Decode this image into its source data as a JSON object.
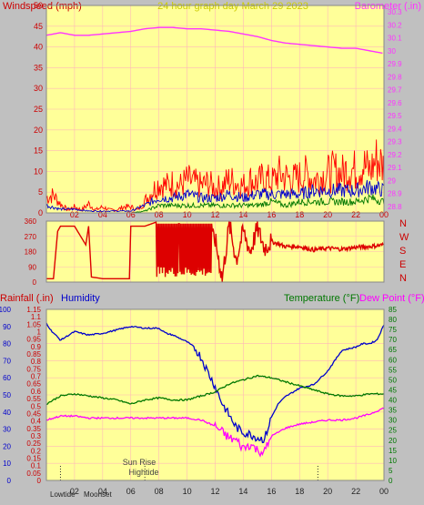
{
  "header": {
    "title": "24 hour graph day   March 29 2023",
    "left_label": "Windspeed (mph)",
    "right_label": "Barometer (.in)"
  },
  "colors": {
    "plot_bg": "#ffff99",
    "frame_bg": "#c0c0c0",
    "grid": "#ffb8b8",
    "wind_gust": "#ff0000",
    "wind_avg": "#0000cc",
    "wind_low": "#007700",
    "barometer": "#ff33ff",
    "direction": "#dd0000",
    "humidity": "#0000cc",
    "temperature": "#007700",
    "dewpoint": "#ff00ff",
    "title_text": "#cccc00",
    "axis_red": "#cc0000"
  },
  "chart_data": [
    {
      "type": "line",
      "id": "wind",
      "x_ticks": [
        "02",
        "04",
        "06",
        "08",
        "10",
        "12",
        "14",
        "16",
        "18",
        "20",
        "22",
        "00"
      ],
      "y_ticks_left": [
        "0",
        "5",
        "10",
        "15",
        "20",
        "25",
        "30",
        "35",
        "40",
        "45",
        "50"
      ],
      "ylim_left": [
        0,
        50
      ],
      "y_ticks_right": [
        "28.8",
        "28.9",
        "29",
        "29.1",
        "29.2",
        "29.3",
        "29.4",
        "29.5",
        "29.6",
        "29.7",
        "29.8",
        "29.9",
        "30",
        "30.1",
        "30.2",
        "30.3"
      ],
      "ylim_right": [
        28.75,
        30.35
      ],
      "xlim_hours": [
        0,
        24
      ],
      "series": [
        {
          "name": "Windspeed (mph)",
          "role": "gust",
          "x": [
            0,
            0.5,
            1,
            1.5,
            2,
            2.5,
            3,
            3.5,
            4,
            4.5,
            5,
            5.5,
            6,
            6.5,
            7,
            7.5,
            8,
            8.5,
            9,
            9.5,
            10,
            10.5,
            11,
            11.5,
            12,
            12.5,
            13,
            13.5,
            14,
            14.5,
            15,
            15.5,
            16,
            16.5,
            17,
            17.5,
            18,
            18.5,
            19,
            19.5,
            20,
            20.5,
            21,
            21.5,
            22,
            22.5,
            23,
            23.5,
            24
          ],
          "y": [
            5,
            6,
            3,
            1,
            2,
            1,
            3,
            1,
            2,
            1,
            1,
            2,
            2,
            1,
            4,
            7,
            10,
            9,
            10,
            9,
            11,
            10,
            9,
            10,
            8,
            9,
            11,
            10,
            9,
            11,
            10,
            12,
            10,
            13,
            12,
            11,
            12,
            13,
            11,
            12,
            13,
            14,
            13,
            15,
            14,
            16,
            14,
            18,
            15
          ]
        },
        {
          "name": "Average",
          "role": "avg",
          "x": [
            0,
            1,
            2,
            3,
            4,
            5,
            6,
            7,
            8,
            9,
            10,
            11,
            12,
            13,
            14,
            15,
            16,
            17,
            18,
            19,
            20,
            21,
            22,
            23,
            24
          ],
          "y": [
            2,
            1,
            1,
            0.5,
            0.5,
            0.5,
            0.5,
            2,
            4,
            4,
            5,
            4,
            4,
            5,
            4,
            5,
            5,
            5,
            5,
            6,
            6,
            6,
            6,
            7,
            6
          ]
        },
        {
          "name": "Low",
          "role": "low",
          "x": [
            0,
            1,
            2,
            3,
            4,
            5,
            6,
            7,
            8,
            9,
            10,
            11,
            12,
            13,
            14,
            15,
            16,
            17,
            18,
            19,
            20,
            21,
            22,
            23,
            24
          ],
          "y": [
            0,
            0,
            0,
            0,
            0,
            0,
            0,
            0.5,
            2,
            2,
            2,
            2,
            2,
            2,
            2,
            2,
            3,
            2,
            3,
            3,
            3,
            3,
            3,
            4,
            3
          ]
        },
        {
          "name": "Barometer (.in)",
          "role": "barometer",
          "axis": "right",
          "x": [
            0,
            1,
            2,
            3,
            4,
            5,
            6,
            7,
            8,
            9,
            10,
            11,
            12,
            13,
            14,
            15,
            16,
            17,
            18,
            19,
            20,
            21,
            22,
            23,
            24
          ],
          "y": [
            30.12,
            30.14,
            30.12,
            30.12,
            30.13,
            30.14,
            30.15,
            30.17,
            30.18,
            30.18,
            30.17,
            30.17,
            30.16,
            30.15,
            30.13,
            30.11,
            30.08,
            30.06,
            30.05,
            30.04,
            30.03,
            30.02,
            30.02,
            30.0,
            29.98
          ]
        }
      ]
    },
    {
      "type": "line",
      "id": "direction",
      "y_ticks": [
        "0",
        "90",
        "180",
        "270",
        "360"
      ],
      "ylim": [
        0,
        360
      ],
      "direction_labels": [
        "N",
        "W",
        "S",
        "E",
        "N"
      ],
      "xlim_hours": [
        0,
        24
      ],
      "series": [
        {
          "name": "Wind direction",
          "x": [
            0,
            0.5,
            0.8,
            1,
            2,
            2.8,
            3,
            3.2,
            4,
            5,
            5.9,
            6,
            6.5,
            7,
            8,
            9,
            10,
            11,
            12,
            12.5,
            13,
            13.5,
            14,
            14.5,
            15,
            15.5,
            16,
            17,
            18,
            19,
            20,
            21,
            22,
            23,
            24
          ],
          "y": [
            20,
            20,
            300,
            330,
            330,
            220,
            330,
            30,
            20,
            20,
            20,
            330,
            330,
            330,
            360,
            340,
            350,
            300,
            250,
            20,
            340,
            130,
            300,
            180,
            320,
            200,
            240,
            210,
            210,
            190,
            200,
            195,
            205,
            210,
            220
          ]
        }
      ]
    },
    {
      "type": "line",
      "id": "temp",
      "left_title": "Rainfall (.in)",
      "humidity_title": "Humidity",
      "right_title_temp": "Temperature (°F)",
      "right_title_dew": "Dew Point (°F)",
      "y_ticks_humidity": [
        "0",
        "10",
        "20",
        "30",
        "40",
        "50",
        "60",
        "70",
        "80",
        "90",
        "100"
      ],
      "y_ticks_rain": [
        "0",
        "0.05",
        "0.1",
        "0.15",
        "0.2",
        "0.25",
        "0.3",
        "0.35",
        "0.4",
        "0.45",
        "0.5",
        "0.55",
        "0.6",
        "0.65",
        "0.7",
        "0.75",
        "0.8",
        "0.85",
        "0.9",
        "0.95",
        "1",
        "1.05",
        "1.1",
        "1.15"
      ],
      "y_ticks_temp": [
        "0",
        "5",
        "10",
        "15",
        "20",
        "25",
        "30",
        "35",
        "40",
        "45",
        "50",
        "55",
        "60",
        "65",
        "70",
        "75",
        "80",
        "85"
      ],
      "ylim_humidity": [
        0,
        100
      ],
      "ylim_temp": [
        0,
        85
      ],
      "xlim_hours": [
        0,
        24
      ],
      "x_ticks": [
        "02",
        "04",
        "06",
        "08",
        "10",
        "12",
        "14",
        "16",
        "18",
        "20",
        "22",
        "00"
      ],
      "annotations": [
        "Sun Rise",
        "Hightide",
        "Lowtide",
        "Moonset"
      ],
      "series": [
        {
          "name": "Humidity",
          "x": [
            0,
            0.3,
            1,
            2,
            3,
            4,
            5,
            6,
            7,
            8,
            8.5,
            9,
            10,
            10.5,
            11,
            11.5,
            12,
            12.5,
            13,
            13.5,
            14,
            14.5,
            15,
            15.5,
            16,
            16.5,
            17,
            18,
            19,
            20,
            21,
            22,
            22.5,
            23,
            23.5,
            24
          ],
          "y": [
            92,
            88,
            82,
            87,
            85,
            86,
            88,
            90,
            89,
            89,
            86,
            85,
            81,
            78,
            72,
            63,
            55,
            45,
            38,
            31,
            28,
            27,
            25,
            24,
            37,
            45,
            49,
            54,
            56,
            64,
            76,
            78,
            80,
            80,
            82,
            91
          ]
        },
        {
          "name": "Temperature (°F)",
          "x": [
            0,
            1,
            2,
            3,
            4,
            5,
            6,
            7,
            8,
            9,
            10,
            11,
            12,
            13,
            14,
            15,
            16,
            17,
            18,
            19,
            20,
            21,
            22,
            23,
            24
          ],
          "y": [
            38,
            42,
            43,
            42,
            41,
            40,
            38,
            40,
            41,
            40,
            40,
            42,
            44,
            48,
            50,
            52,
            51,
            49,
            47,
            45,
            43,
            42,
            42,
            43,
            43
          ]
        },
        {
          "name": "Dew Point (°F)",
          "x": [
            0,
            1,
            2,
            3,
            4,
            5,
            6,
            7,
            8,
            9,
            10,
            11,
            12,
            12.5,
            13,
            13.5,
            14,
            14.5,
            15,
            15.5,
            16,
            17,
            18,
            19,
            20,
            21,
            22,
            23,
            24
          ],
          "y": [
            30,
            32,
            32,
            31,
            31,
            31,
            31,
            31,
            31,
            31,
            31,
            30,
            27,
            24,
            21,
            20,
            16,
            18,
            15,
            14,
            22,
            26,
            28,
            29,
            30,
            30,
            31,
            33,
            36
          ]
        }
      ]
    }
  ]
}
